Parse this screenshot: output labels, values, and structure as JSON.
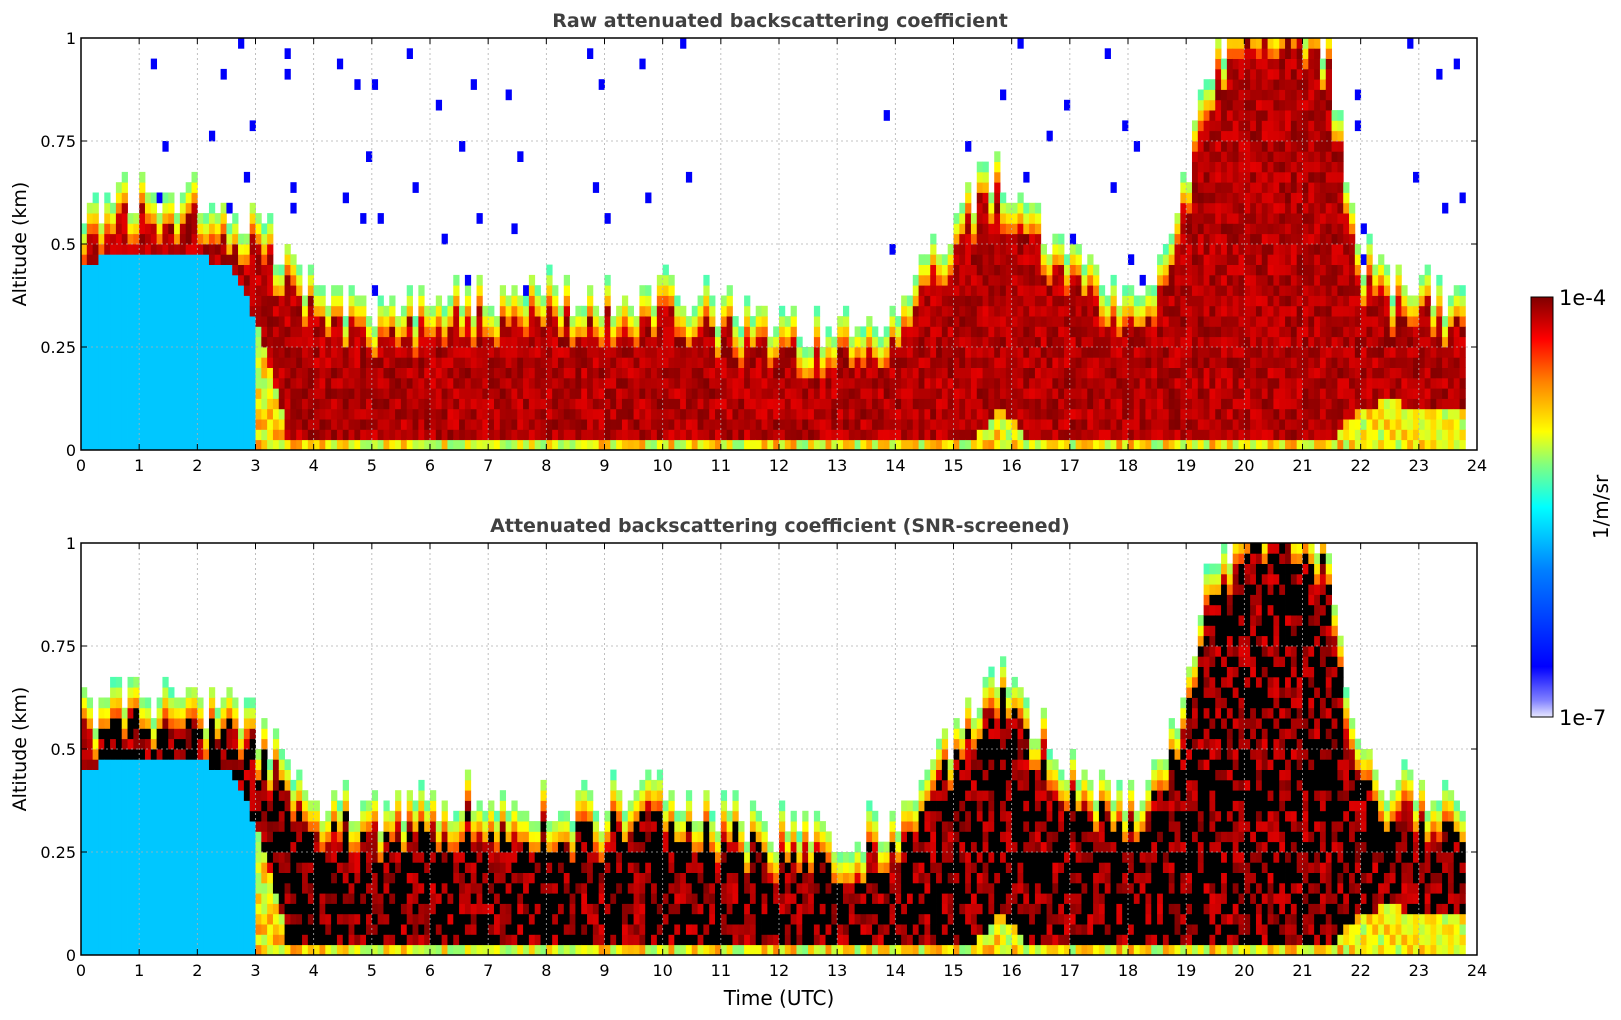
{
  "chart_data": [
    {
      "type": "heatmap",
      "title": "Raw attenuated backscattering coefficient",
      "xlabel": "",
      "ylabel": "Altitude (km)",
      "xlim": [
        0,
        24
      ],
      "ylim": [
        0,
        1
      ],
      "xticks": [
        "0",
        "1",
        "2",
        "3",
        "4",
        "5",
        "6",
        "7",
        "8",
        "9",
        "10",
        "11",
        "12",
        "13",
        "14",
        "15",
        "16",
        "17",
        "18",
        "19",
        "20",
        "21",
        "22",
        "23",
        "24"
      ],
      "yticks": [
        "0",
        "0.25",
        "0.5",
        "0.75",
        "1"
      ],
      "ytick_values": [
        0,
        0.25,
        0.5,
        0.75,
        1
      ],
      "grid": true,
      "screened": false,
      "cloud_top_km": [
        0.52,
        0.54,
        0.55,
        0.55,
        0.54,
        0.52,
        0.48,
        0.38,
        0.3,
        0.28,
        0.27,
        0.28,
        0.3,
        0.32,
        0.28,
        0.3,
        0.3,
        0.28,
        0.3,
        0.32,
        0.3,
        0.28,
        0.26,
        0.24,
        0.22,
        0.22,
        0.22,
        0.24,
        0.3,
        0.42,
        0.55,
        0.6,
        0.5,
        0.42,
        0.35,
        0.3,
        0.32,
        0.5,
        0.85,
        0.95,
        1.0,
        1.0,
        0.9,
        0.4,
        0.35,
        0.32,
        0.3,
        0.28
      ],
      "cloud_base_km": [
        0.45,
        0.47,
        0.48,
        0.48,
        0.47,
        0.45,
        0.3,
        0.02,
        0.02,
        0.02,
        0.02,
        0.02,
        0.02,
        0.02,
        0.02,
        0.02,
        0.02,
        0.02,
        0.02,
        0.02,
        0.02,
        0.02,
        0.02,
        0.02,
        0.02,
        0.02,
        0.02,
        0.02,
        0.02,
        0.02,
        0.02,
        0.1,
        0.02,
        0.02,
        0.02,
        0.02,
        0.02,
        0.02,
        0.02,
        0.02,
        0.02,
        0.02,
        0.02,
        0.1,
        0.12,
        0.1,
        0.1,
        0.1
      ]
    },
    {
      "type": "heatmap",
      "title": "Attenuated backscattering coefficient (SNR-screened)",
      "xlabel": "Time (UTC)",
      "ylabel": "Altitude (km)",
      "xlim": [
        0,
        24
      ],
      "ylim": [
        0,
        1
      ],
      "xticks": [
        "0",
        "1",
        "2",
        "3",
        "4",
        "5",
        "6",
        "7",
        "8",
        "9",
        "10",
        "11",
        "12",
        "13",
        "14",
        "15",
        "16",
        "17",
        "18",
        "19",
        "20",
        "21",
        "22",
        "23",
        "24"
      ],
      "yticks": [
        "0",
        "0.25",
        "0.5",
        "0.75",
        "1"
      ],
      "ytick_values": [
        0,
        0.25,
        0.5,
        0.75,
        1
      ],
      "grid": true,
      "screened": true,
      "cloud_top_km": [
        0.52,
        0.54,
        0.55,
        0.55,
        0.54,
        0.52,
        0.48,
        0.38,
        0.3,
        0.28,
        0.27,
        0.28,
        0.3,
        0.32,
        0.28,
        0.3,
        0.3,
        0.28,
        0.3,
        0.32,
        0.3,
        0.28,
        0.26,
        0.24,
        0.22,
        0.22,
        0.22,
        0.24,
        0.3,
        0.42,
        0.55,
        0.6,
        0.5,
        0.42,
        0.35,
        0.3,
        0.32,
        0.5,
        0.85,
        0.95,
        1.0,
        1.0,
        0.9,
        0.4,
        0.35,
        0.32,
        0.3,
        0.28
      ],
      "cloud_base_km": [
        0.45,
        0.47,
        0.48,
        0.48,
        0.47,
        0.45,
        0.3,
        0.02,
        0.02,
        0.02,
        0.02,
        0.02,
        0.02,
        0.02,
        0.02,
        0.02,
        0.02,
        0.02,
        0.02,
        0.02,
        0.02,
        0.02,
        0.02,
        0.02,
        0.02,
        0.02,
        0.02,
        0.02,
        0.02,
        0.02,
        0.02,
        0.1,
        0.02,
        0.02,
        0.02,
        0.02,
        0.02,
        0.02,
        0.02,
        0.02,
        0.02,
        0.02,
        0.02,
        0.1,
        0.12,
        0.1,
        0.1,
        0.1
      ]
    }
  ],
  "colorbar": {
    "max_label": "1e-4",
    "min_label": "1e-7",
    "unit_label": "1/m/sr",
    "colormap": [
      "#00008f",
      "#0000ff",
      "#0080ff",
      "#00ffff",
      "#80ff80",
      "#ffff00",
      "#ff8000",
      "#ff0000",
      "#800000"
    ],
    "low_color": "#e8e8ff",
    "screened_color": "#000000"
  }
}
